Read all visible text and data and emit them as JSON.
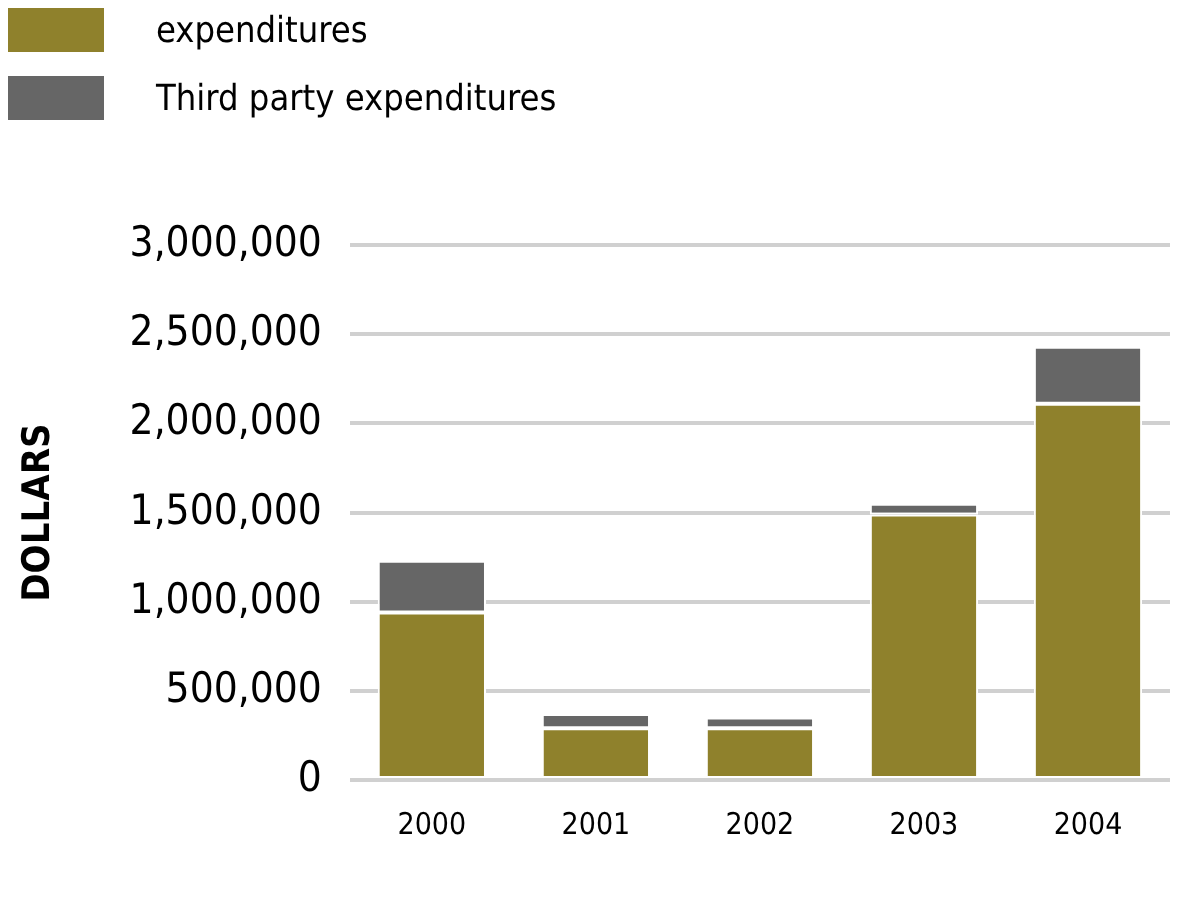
{
  "chart_data": {
    "type": "bar",
    "stacked": true,
    "ylabel": "DOLLARS",
    "categories": [
      "2000",
      "2001",
      "2002",
      "2003",
      "2004"
    ],
    "series": [
      {
        "name": "expenditures",
        "color": "#8f812c",
        "values": [
          940000,
          290000,
          290000,
          1490000,
          2110000
        ]
      },
      {
        "name": "Third party expenditures",
        "color": "#666666",
        "values": [
          290000,
          80000,
          60000,
          60000,
          320000
        ]
      }
    ],
    "ylim": [
      0,
      3000000
    ],
    "yticks": [
      0,
      {
        "value": 500000,
        "label": "500,000"
      },
      {
        "value": 1000000,
        "label": "1,000,000"
      },
      {
        "value": 1500000,
        "label": "1,500,000"
      },
      {
        "value": 2000000,
        "label": "2,000,000"
      },
      {
        "value": 2500000,
        "label": "2,500,000"
      },
      {
        "value": 3000000,
        "label": "3,000,000"
      }
    ],
    "grid": "y",
    "legend": "top left"
  }
}
